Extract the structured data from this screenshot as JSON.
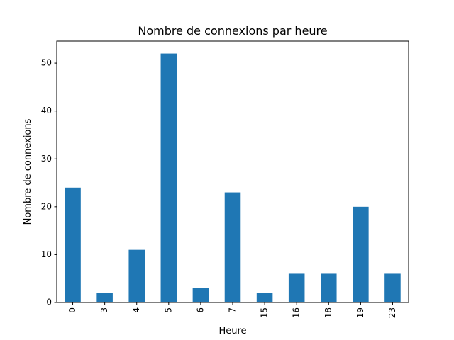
{
  "chart_data": {
    "type": "bar",
    "title": "Nombre de connexions par heure",
    "xlabel": "Heure",
    "ylabel": "Nombre de connexions",
    "categories": [
      "0",
      "3",
      "4",
      "5",
      "6",
      "7",
      "15",
      "16",
      "18",
      "19",
      "23"
    ],
    "values": [
      24,
      2,
      11,
      52,
      3,
      23,
      2,
      6,
      6,
      20,
      6
    ],
    "ylim": [
      0,
      54.6
    ],
    "yticks": [
      0,
      10,
      20,
      30,
      40,
      50
    ],
    "grid": false,
    "legend": "none",
    "bar_color": "#1f77b4",
    "xtick_rotation": "vertical"
  }
}
